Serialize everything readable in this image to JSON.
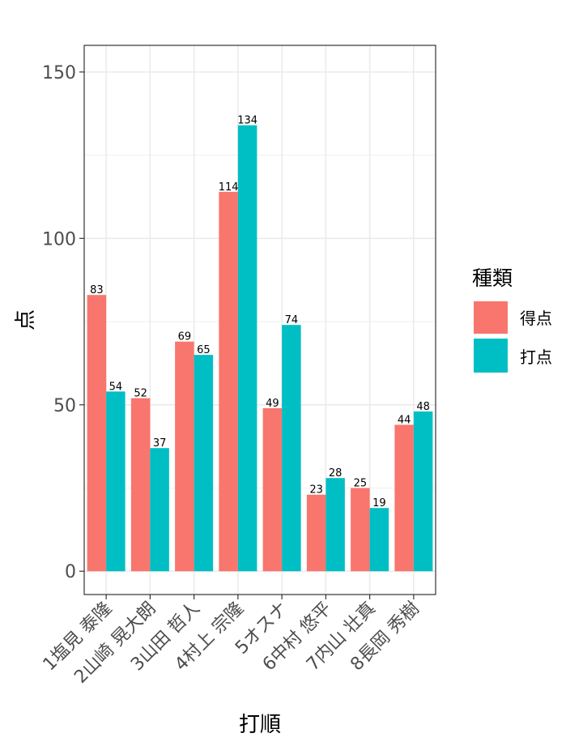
{
  "chart_data": {
    "type": "bar",
    "categories": [
      "1塩見 泰隆",
      "2山崎 晃大朗",
      "3山田 哲人",
      "4村上 宗隆",
      "5オスナ",
      "6中村 悠平",
      "7内山 壮真",
      "8長岡 秀樹"
    ],
    "series": [
      {
        "name": "得点",
        "color": "#F8766D",
        "values": [
          83,
          52,
          69,
          114,
          49,
          23,
          25,
          44
        ]
      },
      {
        "name": "打点",
        "color": "#00BFC4",
        "values": [
          54,
          37,
          65,
          134,
          74,
          28,
          19,
          48
        ]
      }
    ],
    "xlabel": "打順",
    "ylabel": "点",
    "ylim": [
      -7,
      158
    ],
    "yticks": [
      0,
      50,
      100,
      150
    ],
    "legend": {
      "title": "種類",
      "position": "right"
    },
    "grid": true
  }
}
